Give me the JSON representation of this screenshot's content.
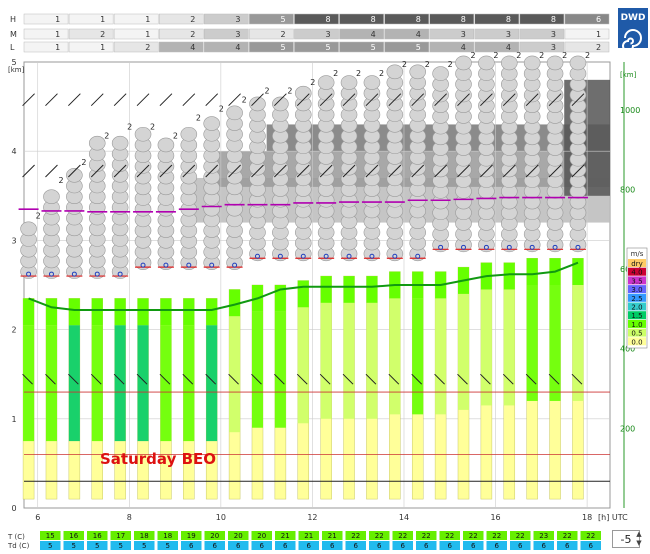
{
  "logo": {
    "text": "DWD"
  },
  "cloud_rows": {
    "labels": [
      "H",
      "M",
      "L"
    ],
    "values": [
      [
        1,
        1,
        1,
        2,
        3,
        5,
        8,
        8,
        8,
        8,
        8,
        8,
        6
      ],
      [
        1,
        2,
        1,
        2,
        3,
        2,
        3,
        4,
        4,
        3,
        3,
        3,
        1
      ],
      [
        1,
        1,
        2,
        4,
        4,
        5,
        5,
        5,
        5,
        4,
        4,
        3,
        2
      ]
    ]
  },
  "chart_data": {
    "type": "meteogram",
    "title": "Saturday BEO",
    "x_unit_label": "[h] UTC",
    "x_ticks": [
      "6",
      "8",
      "10",
      "12",
      "14",
      "16",
      "18"
    ],
    "xlim": [
      5.7,
      18.5
    ],
    "y_left_unit": "[km]",
    "y_left_ticks": [
      "0",
      "1",
      "2",
      "3",
      "4",
      "5"
    ],
    "y_left_range": [
      0,
      5
    ],
    "y_right_unit": "[km]",
    "y_right_ticks": [
      "200",
      "400",
      "600",
      "800",
      "1000"
    ],
    "hours": [
      5.8,
      6.3,
      6.8,
      7.3,
      7.8,
      8.3,
      8.8,
      9.3,
      9.8,
      10.3,
      10.8,
      11.3,
      11.8,
      12.3,
      12.8,
      13.3,
      13.8,
      14.3,
      14.8,
      15.3,
      15.8,
      16.3,
      16.8,
      17.3,
      17.8
    ],
    "cloud_top_km": [
      3.2,
      3.6,
      3.8,
      4.1,
      4.2,
      4.2,
      4.1,
      4.3,
      4.4,
      4.5,
      4.6,
      4.6,
      4.7,
      4.8,
      4.8,
      4.8,
      4.9,
      4.9,
      4.9,
      5.0,
      5.0,
      5.0,
      5.0,
      5.0,
      5.0
    ],
    "cloud_base_km": [
      2.6,
      2.6,
      2.6,
      2.6,
      2.6,
      2.7,
      2.7,
      2.7,
      2.7,
      2.7,
      2.8,
      2.8,
      2.8,
      2.8,
      2.8,
      2.8,
      2.8,
      2.8,
      2.9,
      2.9,
      2.9,
      2.9,
      2.9,
      2.9,
      2.9
    ],
    "inversion_km": [
      3.35,
      3.33,
      3.33,
      3.32,
      3.32,
      3.32,
      3.32,
      3.35,
      3.38,
      3.4,
      3.4,
      3.4,
      3.42,
      3.42,
      3.43,
      3.43,
      3.43,
      3.45,
      3.45,
      3.46,
      3.47,
      3.48,
      3.48,
      3.48,
      3.48
    ],
    "boundary_layer_km": [
      2.35,
      2.25,
      2.22,
      2.22,
      2.22,
      2.22,
      2.22,
      2.22,
      2.22,
      2.28,
      2.35,
      2.45,
      2.48,
      2.48,
      2.48,
      2.48,
      2.5,
      2.5,
      2.5,
      2.55,
      2.6,
      2.62,
      2.62,
      2.65,
      2.75
    ],
    "thermal_top_km": [
      2.35,
      2.35,
      2.35,
      2.35,
      2.35,
      2.35,
      2.35,
      2.35,
      2.35,
      2.45,
      2.5,
      2.5,
      2.55,
      2.6,
      2.6,
      2.6,
      2.65,
      2.65,
      2.65,
      2.7,
      2.75,
      2.75,
      2.8,
      2.8,
      2.8
    ],
    "thermal_max_rate": [
      1.0,
      1.0,
      1.5,
      1.0,
      1.5,
      1.5,
      1.0,
      1.0,
      1.5,
      0.5,
      1.0,
      1.0,
      0.5,
      0.5,
      0.5,
      0.5,
      0.5,
      1.0,
      0.5,
      0.5,
      0.5,
      0.5,
      1.0,
      1.0,
      0.5
    ],
    "cloud_layer_labels": [
      "2",
      "2",
      "2",
      "2",
      "2",
      "2",
      "2",
      "2",
      "2",
      "2",
      "2",
      "2",
      "2",
      "2",
      "2",
      "2",
      "2",
      "2",
      "2",
      "2",
      "2",
      "2",
      "2",
      "2",
      "2"
    ],
    "gray_blocks": [
      {
        "x0": 9.3,
        "x1": 18.5,
        "y0": 3.2,
        "y1": 3.7,
        "shade": "#bbbbbb"
      },
      {
        "x0": 9.8,
        "x1": 18.5,
        "y0": 3.6,
        "y1": 4.0,
        "shade": "#999999"
      },
      {
        "x0": 11.0,
        "x1": 18.5,
        "y0": 4.0,
        "y1": 4.3,
        "shade": "#777777"
      },
      {
        "x0": 17.5,
        "x1": 18.5,
        "y0": 3.5,
        "y1": 4.8,
        "shade": "#555555"
      }
    ],
    "legend_title": "m/s",
    "legend_items": [
      {
        "label": "dry",
        "color": "#ffcc66"
      },
      {
        "label": "4.0",
        "color": "#cc0033"
      },
      {
        "label": "3.5",
        "color": "#cc33cc"
      },
      {
        "label": "3.0",
        "color": "#6666ff"
      },
      {
        "label": "2.5",
        "color": "#3399ff"
      },
      {
        "label": "2.0",
        "color": "#33cccc"
      },
      {
        "label": "1.5",
        "color": "#00cc66"
      },
      {
        "label": "1.0",
        "color": "#66ff00"
      },
      {
        "label": "0.5",
        "color": "#ccff66"
      },
      {
        "label": "0.0",
        "color": "#ffff99"
      }
    ],
    "row_labels": [
      "T (C)",
      "Td (C)"
    ],
    "temperature_c": [
      "15",
      "16",
      "16",
      "17",
      "18",
      "18",
      "19",
      "20",
      "20",
      "20",
      "21",
      "21",
      "21",
      "22",
      "22",
      "22",
      "22",
      "22",
      "22",
      "22",
      "22",
      "23",
      "22",
      "22"
    ],
    "dewpoint_c": [
      "5",
      "5",
      "5",
      "5",
      "5",
      "5",
      "6",
      "6",
      "6",
      "6",
      "6",
      "6",
      "6",
      "6",
      "6",
      "6",
      "6",
      "6",
      "6",
      "6",
      "6",
      "6",
      "6",
      "6"
    ],
    "stepper_value": "-5"
  }
}
